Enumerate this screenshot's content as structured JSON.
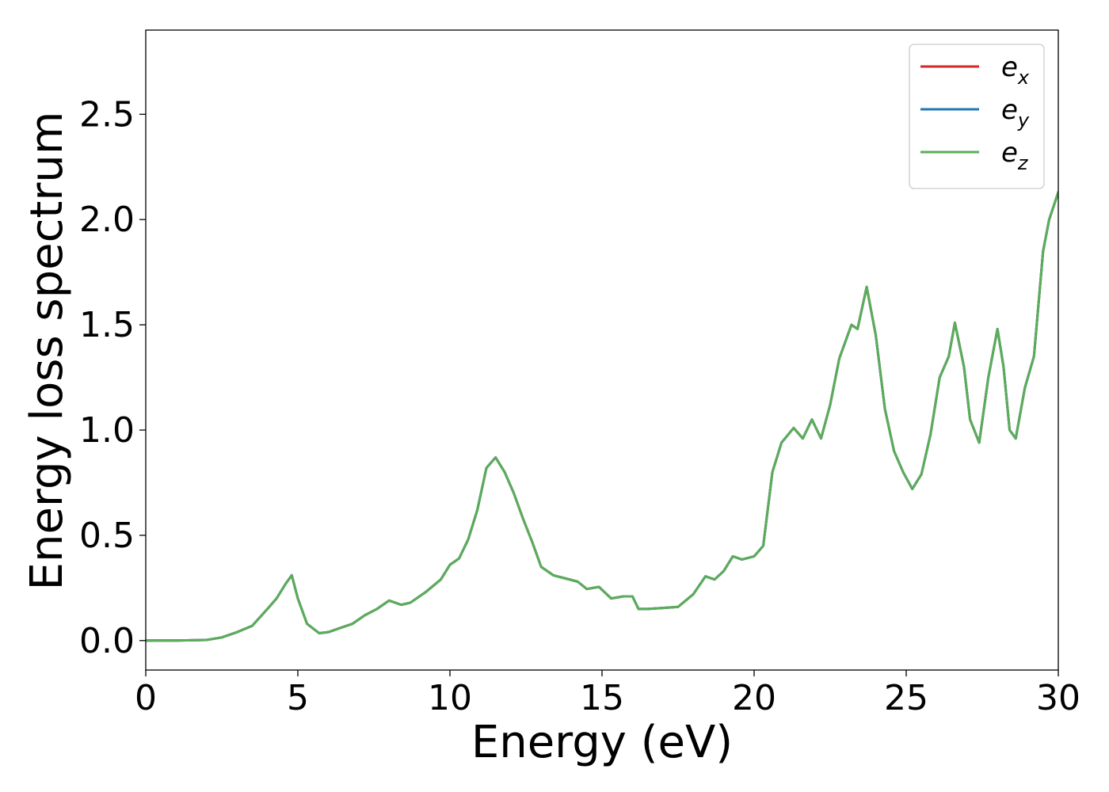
{
  "chart_data": {
    "type": "line",
    "xlabel": "Energy (eV)",
    "ylabel": "Energy loss spectrum",
    "xlim": [
      0,
      30
    ],
    "ylim": [
      -0.14,
      2.9
    ],
    "xticks": [
      0,
      5,
      10,
      15,
      20,
      25,
      30
    ],
    "xtick_labels": [
      "0",
      "5",
      "10",
      "15",
      "20",
      "25",
      "30"
    ],
    "yticks": [
      0.0,
      0.5,
      1.0,
      1.5,
      2.0,
      2.5
    ],
    "ytick_labels": [
      "0.0",
      "0.5",
      "1.0",
      "1.5",
      "2.0",
      "2.5"
    ],
    "grid": false,
    "legend": {
      "placement": "top-right"
    },
    "series": [
      {
        "name": "e_x",
        "legend_main": "e",
        "legend_sub": "x",
        "color": "#d62728",
        "x": [
          0,
          1,
          2,
          2.5,
          3,
          3.5,
          4,
          4.3,
          4.6,
          4.8,
          5,
          5.3,
          5.7,
          6,
          6.4,
          6.8,
          7.2,
          7.6,
          8,
          8.2,
          8.4,
          8.7,
          9.2,
          9.7,
          10,
          10.3,
          10.6,
          10.9,
          11.2,
          11.5,
          11.8,
          12.1,
          12.4,
          12.7,
          13,
          13.4,
          13.8,
          14.2,
          14.5,
          14.9,
          15.3,
          15.7,
          16,
          16.2,
          16.5,
          17,
          17.5,
          18,
          18.4,
          18.7,
          19,
          19.3,
          19.6,
          20,
          20.3,
          20.6,
          20.9,
          21.3,
          21.6,
          21.9,
          22.2,
          22.5,
          22.8,
          23.2,
          23.4,
          23.7,
          24,
          24.3,
          24.6,
          24.9,
          25.2,
          25.5,
          25.8,
          26.1,
          26.4,
          26.6,
          26.9,
          27.1,
          27.4,
          27.7,
          28.0,
          28.2,
          28.4,
          28.6,
          28.9,
          29.2,
          29.5,
          29.7,
          30
        ],
        "y": [
          0,
          0,
          0.003,
          0.015,
          0.04,
          0.07,
          0.15,
          0.2,
          0.27,
          0.31,
          0.2,
          0.08,
          0.035,
          0.04,
          0.06,
          0.08,
          0.12,
          0.15,
          0.19,
          0.18,
          0.17,
          0.18,
          0.23,
          0.29,
          0.36,
          0.39,
          0.48,
          0.62,
          0.82,
          0.87,
          0.8,
          0.7,
          0.58,
          0.47,
          0.35,
          0.31,
          0.295,
          0.28,
          0.245,
          0.255,
          0.2,
          0.21,
          0.21,
          0.15,
          0.15,
          0.155,
          0.16,
          0.22,
          0.305,
          0.29,
          0.33,
          0.4,
          0.385,
          0.4,
          0.45,
          0.8,
          0.94,
          1.01,
          0.96,
          1.05,
          0.96,
          1.12,
          1.34,
          1.5,
          1.48,
          1.68,
          1.45,
          1.1,
          0.9,
          0.8,
          0.72,
          0.79,
          0.98,
          1.25,
          1.35,
          1.51,
          1.3,
          1.05,
          0.94,
          1.25,
          1.48,
          1.3,
          1.0,
          0.96,
          1.2,
          1.35,
          1.85,
          2.0,
          2.13
        ]
      },
      {
        "name": "e_y",
        "legend_main": "e",
        "legend_sub": "y",
        "color": "#1f77b4",
        "x": [
          0,
          1,
          2,
          2.5,
          3,
          3.5,
          4,
          4.3,
          4.6,
          4.8,
          5,
          5.3,
          5.7,
          6,
          6.4,
          6.8,
          7.2,
          7.6,
          8,
          8.2,
          8.4,
          8.7,
          9.2,
          9.7,
          10,
          10.3,
          10.6,
          10.9,
          11.2,
          11.5,
          11.8,
          12.1,
          12.4,
          12.7,
          13,
          13.4,
          13.8,
          14.2,
          14.5,
          14.9,
          15.3,
          15.7,
          16,
          16.2,
          16.5,
          17,
          17.5,
          18,
          18.4,
          18.7,
          19,
          19.3,
          19.6,
          20,
          20.3,
          20.6,
          20.9,
          21.3,
          21.6,
          21.9,
          22.2,
          22.5,
          22.8,
          23.2,
          23.4,
          23.7,
          24,
          24.3,
          24.6,
          24.9,
          25.2,
          25.5,
          25.8,
          26.1,
          26.4,
          26.6,
          26.9,
          27.1,
          27.4,
          27.7,
          28.0,
          28.2,
          28.4,
          28.6,
          28.9,
          29.2,
          29.5,
          29.7,
          30
        ],
        "y": [
          0,
          0,
          0.003,
          0.015,
          0.04,
          0.07,
          0.15,
          0.2,
          0.27,
          0.31,
          0.2,
          0.08,
          0.035,
          0.04,
          0.06,
          0.08,
          0.12,
          0.15,
          0.19,
          0.18,
          0.17,
          0.18,
          0.23,
          0.29,
          0.36,
          0.39,
          0.48,
          0.62,
          0.82,
          0.87,
          0.8,
          0.7,
          0.58,
          0.47,
          0.35,
          0.31,
          0.295,
          0.28,
          0.245,
          0.255,
          0.2,
          0.21,
          0.21,
          0.15,
          0.15,
          0.155,
          0.16,
          0.22,
          0.305,
          0.29,
          0.33,
          0.4,
          0.385,
          0.4,
          0.45,
          0.8,
          0.94,
          1.01,
          0.96,
          1.05,
          0.96,
          1.12,
          1.34,
          1.5,
          1.48,
          1.68,
          1.45,
          1.1,
          0.9,
          0.8,
          0.72,
          0.79,
          0.98,
          1.25,
          1.35,
          1.51,
          1.3,
          1.05,
          0.94,
          1.25,
          1.48,
          1.3,
          1.0,
          0.96,
          1.2,
          1.35,
          1.85,
          2.0,
          2.13
        ]
      },
      {
        "name": "e_z",
        "legend_main": "e",
        "legend_sub": "z",
        "color": "#5aad5a",
        "x": [
          0,
          1,
          2,
          2.5,
          3,
          3.5,
          4,
          4.3,
          4.6,
          4.8,
          5,
          5.3,
          5.7,
          6,
          6.4,
          6.8,
          7.2,
          7.6,
          8,
          8.2,
          8.4,
          8.7,
          9.2,
          9.7,
          10,
          10.3,
          10.6,
          10.9,
          11.2,
          11.5,
          11.8,
          12.1,
          12.4,
          12.7,
          13,
          13.4,
          13.8,
          14.2,
          14.5,
          14.9,
          15.3,
          15.7,
          16,
          16.2,
          16.5,
          17,
          17.5,
          18,
          18.4,
          18.7,
          19,
          19.3,
          19.6,
          20,
          20.3,
          20.6,
          20.9,
          21.3,
          21.6,
          21.9,
          22.2,
          22.5,
          22.8,
          23.2,
          23.4,
          23.7,
          24,
          24.3,
          24.6,
          24.9,
          25.2,
          25.5,
          25.8,
          26.1,
          26.4,
          26.6,
          26.9,
          27.1,
          27.4,
          27.7,
          28.0,
          28.2,
          28.4,
          28.6,
          28.9,
          29.2,
          29.5,
          29.7,
          30
        ],
        "y": [
          0,
          0,
          0.003,
          0.015,
          0.04,
          0.07,
          0.15,
          0.2,
          0.27,
          0.31,
          0.2,
          0.08,
          0.035,
          0.04,
          0.06,
          0.08,
          0.12,
          0.15,
          0.19,
          0.18,
          0.17,
          0.18,
          0.23,
          0.29,
          0.36,
          0.39,
          0.48,
          0.62,
          0.82,
          0.87,
          0.8,
          0.7,
          0.58,
          0.47,
          0.35,
          0.31,
          0.295,
          0.28,
          0.245,
          0.255,
          0.2,
          0.21,
          0.21,
          0.15,
          0.15,
          0.155,
          0.16,
          0.22,
          0.305,
          0.29,
          0.33,
          0.4,
          0.385,
          0.4,
          0.45,
          0.8,
          0.94,
          1.01,
          0.96,
          1.05,
          0.96,
          1.12,
          1.34,
          1.5,
          1.48,
          1.68,
          1.45,
          1.1,
          0.9,
          0.8,
          0.72,
          0.79,
          0.98,
          1.25,
          1.35,
          1.51,
          1.3,
          1.05,
          0.94,
          1.25,
          1.48,
          1.3,
          1.0,
          0.96,
          1.2,
          1.35,
          1.85,
          2.0,
          2.13
        ]
      }
    ]
  }
}
